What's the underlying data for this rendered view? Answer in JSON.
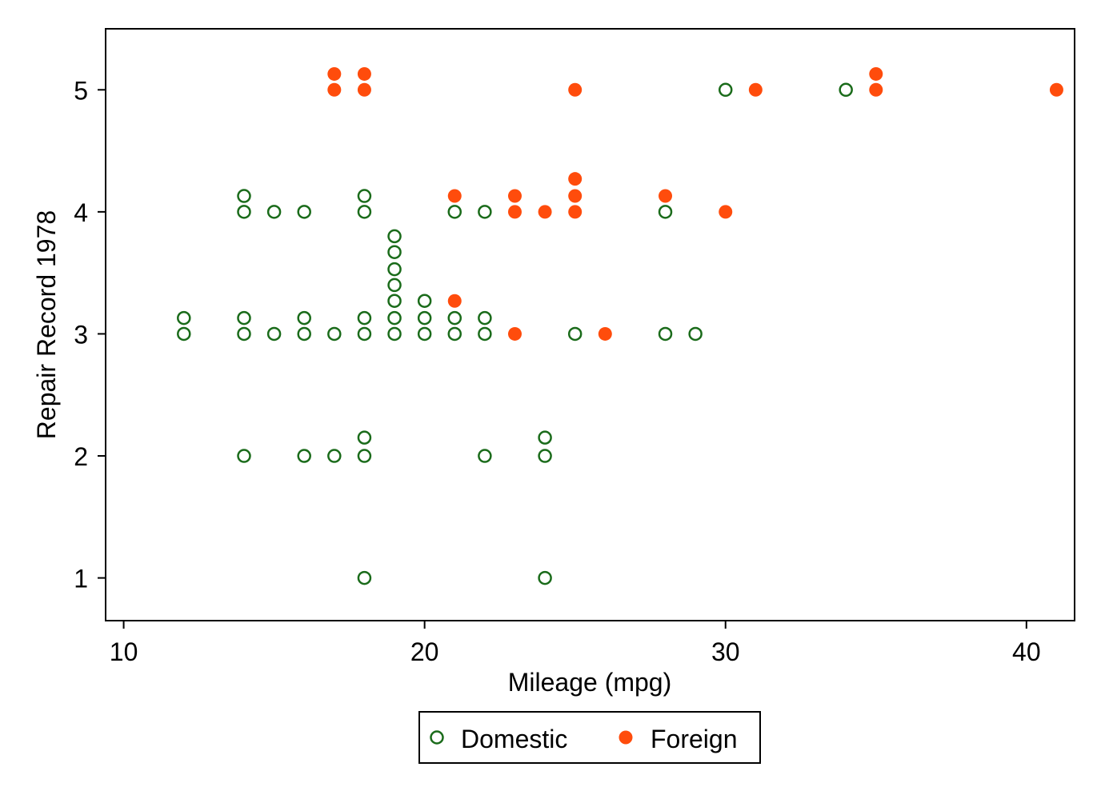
{
  "chart_data": {
    "type": "scatter",
    "xlabel": "Mileage (mpg)",
    "ylabel": "Repair Record 1978",
    "xlim": [
      9.4,
      41.6
    ],
    "ylim": [
      0.65,
      5.5
    ],
    "xticks": [
      10,
      20,
      30,
      40
    ],
    "yticks": [
      1,
      2,
      3,
      4,
      5
    ],
    "grid": false,
    "legend_position": "bottom",
    "series": [
      {
        "name": "Domestic",
        "color": "#1a6b1a",
        "marker": "hollow-circle",
        "points": [
          {
            "x": 18,
            "y": 1
          },
          {
            "x": 24,
            "y": 1
          },
          {
            "x": 14,
            "y": 2
          },
          {
            "x": 16,
            "y": 2
          },
          {
            "x": 17,
            "y": 2
          },
          {
            "x": 18,
            "y": 2
          },
          {
            "x": 18,
            "y": 2.15
          },
          {
            "x": 22,
            "y": 2
          },
          {
            "x": 24,
            "y": 2
          },
          {
            "x": 24,
            "y": 2.15
          },
          {
            "x": 12,
            "y": 3
          },
          {
            "x": 12,
            "y": 3.13
          },
          {
            "x": 14,
            "y": 3
          },
          {
            "x": 14,
            "y": 3.13
          },
          {
            "x": 15,
            "y": 3
          },
          {
            "x": 16,
            "y": 3
          },
          {
            "x": 16,
            "y": 3.13
          },
          {
            "x": 17,
            "y": 3
          },
          {
            "x": 18,
            "y": 3
          },
          {
            "x": 18,
            "y": 3.13
          },
          {
            "x": 19,
            "y": 3
          },
          {
            "x": 19,
            "y": 3.13
          },
          {
            "x": 19,
            "y": 3.27
          },
          {
            "x": 19,
            "y": 3.4
          },
          {
            "x": 19,
            "y": 3.53
          },
          {
            "x": 19,
            "y": 3.67
          },
          {
            "x": 19,
            "y": 3.8
          },
          {
            "x": 20,
            "y": 3
          },
          {
            "x": 20,
            "y": 3.13
          },
          {
            "x": 20,
            "y": 3.27
          },
          {
            "x": 21,
            "y": 3
          },
          {
            "x": 21,
            "y": 3.13
          },
          {
            "x": 22,
            "y": 3
          },
          {
            "x": 22,
            "y": 3.13
          },
          {
            "x": 25,
            "y": 3
          },
          {
            "x": 28,
            "y": 3
          },
          {
            "x": 29,
            "y": 3
          },
          {
            "x": 14,
            "y": 4
          },
          {
            "x": 14,
            "y": 4.13
          },
          {
            "x": 15,
            "y": 4
          },
          {
            "x": 16,
            "y": 4
          },
          {
            "x": 18,
            "y": 4
          },
          {
            "x": 18,
            "y": 4.13
          },
          {
            "x": 21,
            "y": 4
          },
          {
            "x": 22,
            "y": 4
          },
          {
            "x": 28,
            "y": 4
          },
          {
            "x": 30,
            "y": 5
          },
          {
            "x": 34,
            "y": 5
          }
        ]
      },
      {
        "name": "Foreign",
        "color": "#ff4c0c",
        "marker": "filled-circle",
        "points": [
          {
            "x": 21,
            "y": 3.27
          },
          {
            "x": 23,
            "y": 3
          },
          {
            "x": 26,
            "y": 3
          },
          {
            "x": 21,
            "y": 4.13
          },
          {
            "x": 23,
            "y": 4
          },
          {
            "x": 23,
            "y": 4.13
          },
          {
            "x": 24,
            "y": 4
          },
          {
            "x": 25,
            "y": 4
          },
          {
            "x": 25,
            "y": 4.13
          },
          {
            "x": 25,
            "y": 4.27
          },
          {
            "x": 28,
            "y": 4.13
          },
          {
            "x": 30,
            "y": 4
          },
          {
            "x": 17,
            "y": 5
          },
          {
            "x": 17,
            "y": 5.13
          },
          {
            "x": 18,
            "y": 5
          },
          {
            "x": 18,
            "y": 5.13
          },
          {
            "x": 25,
            "y": 5
          },
          {
            "x": 31,
            "y": 5
          },
          {
            "x": 35,
            "y": 5
          },
          {
            "x": 35,
            "y": 5.13
          },
          {
            "x": 41,
            "y": 5
          }
        ]
      }
    ]
  }
}
